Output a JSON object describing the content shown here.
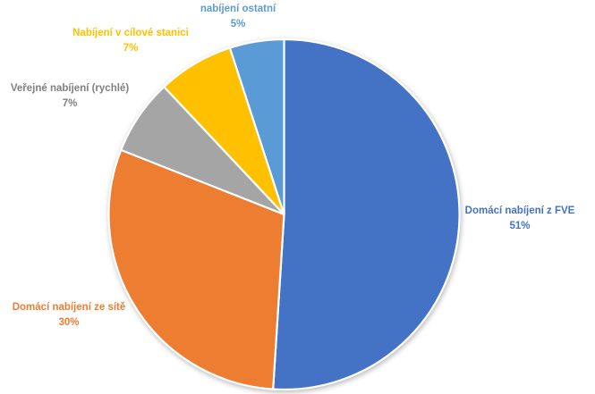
{
  "chart_data": {
    "type": "pie",
    "title": "",
    "background": "#FFFFFF",
    "slice_border_color": "#FFFFFF",
    "direction": "clockwise",
    "start_angle_deg": 0,
    "legend": "none",
    "slices": [
      {
        "label": "Domácí nabíjení z FVE",
        "percent_label": "51%",
        "value": 51,
        "color": "#4472C4",
        "label_color": "#4472C4"
      },
      {
        "label": "Domácí nabíjení ze sítě",
        "percent_label": "30%",
        "value": 30,
        "color": "#ED7D31",
        "label_color": "#ED7D31"
      },
      {
        "label": "Veřejné nabíjení (rychlé)",
        "percent_label": "7%",
        "value": 7,
        "color": "#A5A5A5",
        "label_color": "#808080"
      },
      {
        "label": "Nabíjení v cílové stanici",
        "percent_label": "7%",
        "value": 7,
        "color": "#FFC000",
        "label_color": "#FFC000"
      },
      {
        "label": "nabíjení ostatní",
        "percent_label": "5%",
        "value": 5,
        "color": "#5B9BD5",
        "label_color": "#5B9BD5"
      }
    ]
  }
}
